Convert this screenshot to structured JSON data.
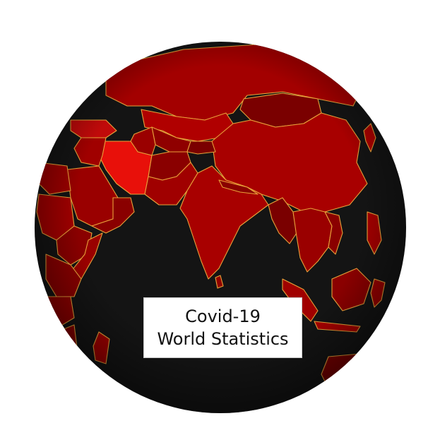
{
  "title": {
    "line1": "Covid-19",
    "line2": "World Statistics"
  },
  "colors": {
    "ocean": "#141414",
    "border": "#e8a23a",
    "highlight": "#e8100a",
    "dark_region": "#6a0000",
    "mid_region": "#9c0000"
  }
}
